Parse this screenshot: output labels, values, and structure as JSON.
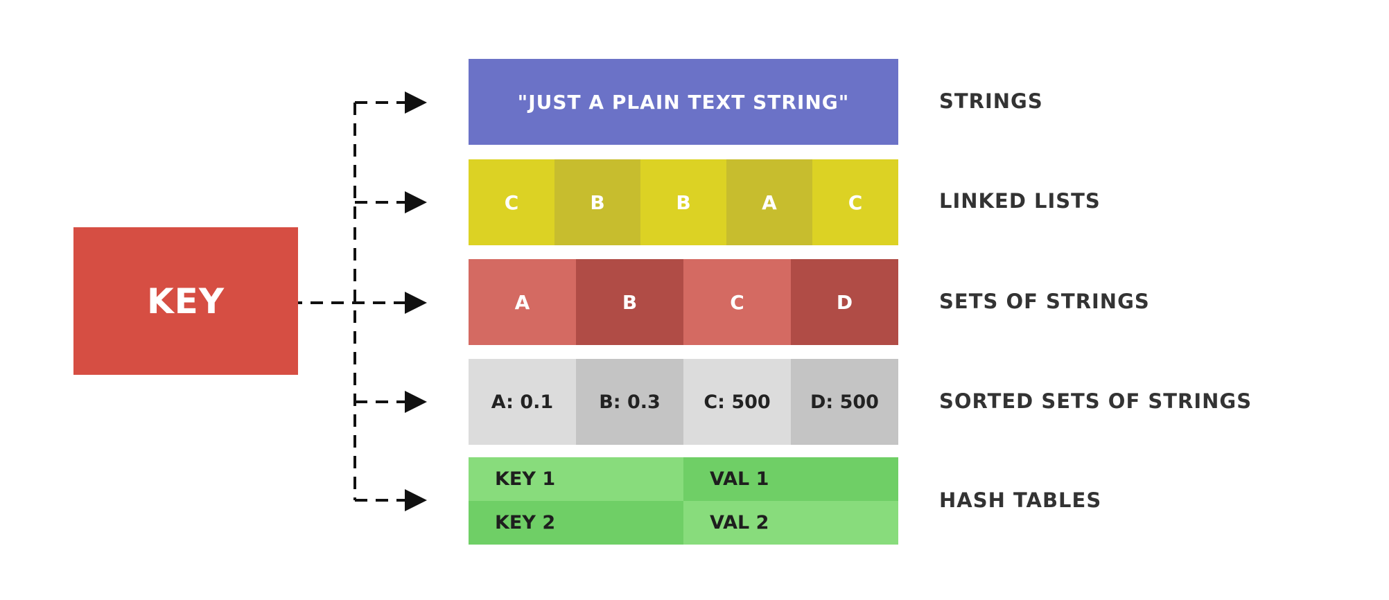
{
  "key": {
    "label": "KEY",
    "color": "#d64e43"
  },
  "types": [
    {
      "label": "STRINGS",
      "cells": [
        "\"JUST A PLAIN TEXT STRING\""
      ],
      "colors": [
        "#6b72c7"
      ]
    },
    {
      "label": "LINKED LISTS",
      "cells": [
        "C",
        "B",
        "B",
        "A",
        "C"
      ],
      "colors": [
        "#dcd224",
        "#c7bd2e",
        "#dcd224",
        "#c7bd2e",
        "#dcd224"
      ]
    },
    {
      "label": "SETS OF STRINGS",
      "cells": [
        "A",
        "B",
        "C",
        "D"
      ],
      "colors": [
        "#d46a62",
        "#b04c46",
        "#d46a62",
        "#b04c46"
      ]
    },
    {
      "label": "SORTED SETS OF STRINGS",
      "cells": [
        "A: 0.1",
        "B: 0.3",
        "C: 500",
        "D: 500"
      ],
      "colors": [
        "#dcdcdc",
        "#c4c4c4",
        "#dcdcdc",
        "#c4c4c4"
      ]
    },
    {
      "label": "HASH TABLES",
      "rows": [
        {
          "key": "KEY 1",
          "val": "VAL 1"
        },
        {
          "key": "KEY 2",
          "val": "VAL 2"
        }
      ],
      "colors": [
        "#88dc7c",
        "#6fcf66"
      ]
    }
  ]
}
